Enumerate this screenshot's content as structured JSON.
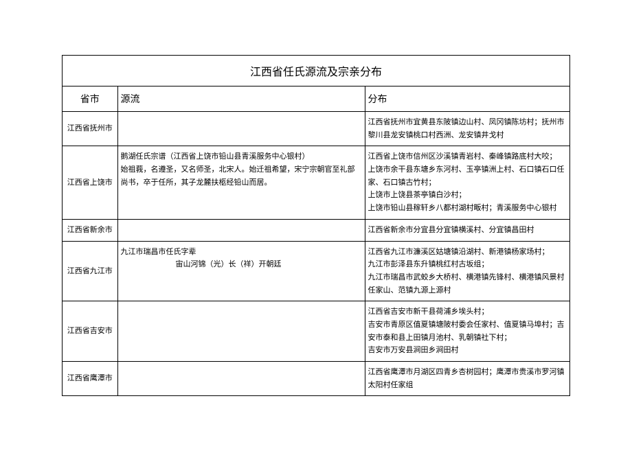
{
  "title": "江西省任氏源流及宗亲分布",
  "columns": {
    "region": "省市",
    "source": "源流",
    "distribution": "分布"
  },
  "rows": [
    {
      "region": "江西省抚州市",
      "source": "",
      "distribution": "江西省抚州市宜黄县东陂镇边山村、凤冈镇陈坊村；抚州市黎川县龙安镇桃口村西洲、龙安镇井戈村"
    },
    {
      "region": "江西省上饶市",
      "source": "鹅湖任氏宗谱（江西省上饶市铅山县青溪服务中心银村）\n始祖莪，名遵圣，又名师圣，北宋人。始迁祖希望，宋宁宗朝官至礼部尚书，卒于任所，其子龙麓扶柩经铅山而居。",
      "distribution": "江西省上饶市信州区沙溪镇青岩村、秦峰镇路底村大咬；\n上饶市余干县东塘乡东河村、玉亭镇洲上村、石口镇石口任家、石口镇古竹村；\n上饶市上饶县茶亭镇白沙村；\n上饶市铅山县稼轩乡八都村湖村畈村；青溪服务中心银村"
    },
    {
      "region": "江西省新余市",
      "source": "",
      "distribution": "江西省新余市分宜县分宜镇横溪村、分宜镇昌田村"
    },
    {
      "region": "江西省九江市",
      "source": "九江市瑞昌市任氏字辈\n宙山河锦（光）长（祥）开朝廷",
      "distribution": "江西省九江市濂溪区姑塘镇沿湖村、新港镇杨家场村；\n九江市彭泽县东升镇桃红村古坂组；\n九江市瑞昌市武蛟乡大桥村、横港镇先锋村、横港镇风景村任家山、范镇九源上源村"
    },
    {
      "region": "江西省吉安市",
      "source": "",
      "distribution": "江西省吉安市新干县荷浦乡埃头村；\n吉安市青原区值夏镇塘陂村委会任家村、值夏镇马埠村；吉安市泰和县上田镇月池村、乳朝镇社下村；\n吉安市万安县涧田乡涧田村"
    },
    {
      "region": "江西省鹰潭市",
      "source": "",
      "distribution": "江西省鹰潭市月湖区四青乡杏树园村；鹰潭市贵溪市罗河镇太阳村任家组"
    }
  ],
  "style": {
    "border_color": "#000000",
    "background_color": "#ffffff",
    "text_color": "#000000",
    "title_fontsize": 16,
    "header_fontsize": 14,
    "cell_fontsize": 11,
    "line_height": 1.7
  }
}
